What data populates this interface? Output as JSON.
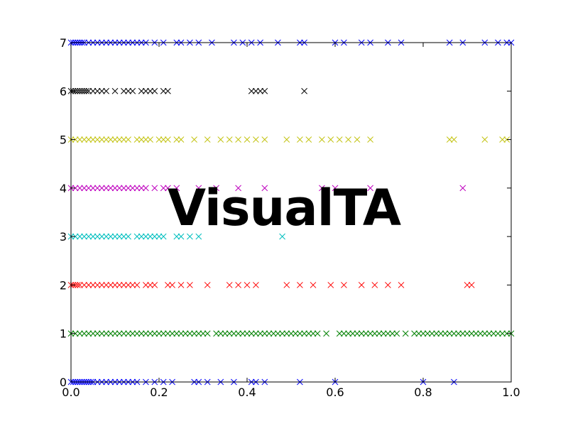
{
  "overlay": {
    "text": "VisualTA"
  },
  "chart_data": {
    "type": "scatter",
    "marker": "x",
    "title": "",
    "xlabel": "",
    "ylabel": "",
    "xlim": [
      0.0,
      1.0
    ],
    "ylim": [
      0,
      7
    ],
    "grid": false,
    "xticks": [
      "0.0",
      "0.2",
      "0.4",
      "0.6",
      "0.8",
      "1.0"
    ],
    "yticks": [
      "0",
      "1",
      "2",
      "3",
      "4",
      "5",
      "6",
      "7"
    ],
    "series": [
      {
        "color": "#0000ff",
        "y": 0,
        "x": [
          0.0,
          0.005,
          0.01,
          0.015,
          0.02,
          0.025,
          0.03,
          0.035,
          0.04,
          0.045,
          0.05,
          0.06,
          0.07,
          0.08,
          0.09,
          0.1,
          0.11,
          0.12,
          0.13,
          0.14,
          0.15,
          0.17,
          0.19,
          0.21,
          0.23,
          0.28,
          0.29,
          0.31,
          0.34,
          0.37,
          0.41,
          0.42,
          0.44,
          0.52,
          0.6,
          0.8,
          0.87
        ]
      },
      {
        "color": "#008000",
        "y": 1,
        "x": [
          0.0,
          0.01,
          0.02,
          0.03,
          0.04,
          0.05,
          0.06,
          0.07,
          0.08,
          0.09,
          0.1,
          0.11,
          0.12,
          0.13,
          0.14,
          0.15,
          0.16,
          0.17,
          0.18,
          0.19,
          0.2,
          0.21,
          0.22,
          0.23,
          0.24,
          0.25,
          0.26,
          0.27,
          0.28,
          0.29,
          0.3,
          0.31,
          0.33,
          0.34,
          0.35,
          0.36,
          0.37,
          0.38,
          0.39,
          0.4,
          0.41,
          0.42,
          0.43,
          0.44,
          0.45,
          0.46,
          0.47,
          0.48,
          0.49,
          0.5,
          0.51,
          0.52,
          0.53,
          0.54,
          0.55,
          0.56,
          0.58,
          0.61,
          0.62,
          0.63,
          0.64,
          0.65,
          0.66,
          0.67,
          0.68,
          0.69,
          0.7,
          0.71,
          0.72,
          0.73,
          0.74,
          0.76,
          0.78,
          0.79,
          0.8,
          0.81,
          0.82,
          0.83,
          0.84,
          0.85,
          0.86,
          0.87,
          0.88,
          0.89,
          0.9,
          0.91,
          0.92,
          0.93,
          0.94,
          0.95,
          0.96,
          0.97,
          0.98,
          0.99,
          1.0
        ]
      },
      {
        "color": "#ff0000",
        "y": 2,
        "x": [
          0.0,
          0.005,
          0.01,
          0.015,
          0.02,
          0.03,
          0.04,
          0.05,
          0.06,
          0.07,
          0.08,
          0.09,
          0.1,
          0.11,
          0.12,
          0.13,
          0.14,
          0.15,
          0.17,
          0.18,
          0.19,
          0.22,
          0.23,
          0.25,
          0.27,
          0.31,
          0.36,
          0.38,
          0.4,
          0.42,
          0.49,
          0.52,
          0.55,
          0.59,
          0.62,
          0.66,
          0.69,
          0.72,
          0.75,
          0.9,
          0.91
        ]
      },
      {
        "color": "#00bfbf",
        "y": 3,
        "x": [
          0.0,
          0.01,
          0.02,
          0.03,
          0.04,
          0.05,
          0.06,
          0.07,
          0.08,
          0.09,
          0.1,
          0.11,
          0.12,
          0.13,
          0.15,
          0.16,
          0.17,
          0.18,
          0.19,
          0.2,
          0.21,
          0.24,
          0.25,
          0.27,
          0.29,
          0.48
        ]
      },
      {
        "color": "#bf00bf",
        "y": 4,
        "x": [
          0.0,
          0.01,
          0.02,
          0.03,
          0.04,
          0.05,
          0.06,
          0.07,
          0.08,
          0.09,
          0.1,
          0.11,
          0.12,
          0.13,
          0.14,
          0.15,
          0.16,
          0.17,
          0.19,
          0.21,
          0.22,
          0.24,
          0.29,
          0.33,
          0.38,
          0.44,
          0.57,
          0.6,
          0.68,
          0.89
        ]
      },
      {
        "color": "#bfbf00",
        "y": 5,
        "x": [
          0.0,
          0.01,
          0.02,
          0.03,
          0.04,
          0.05,
          0.06,
          0.07,
          0.08,
          0.09,
          0.1,
          0.11,
          0.12,
          0.13,
          0.15,
          0.16,
          0.17,
          0.18,
          0.2,
          0.21,
          0.22,
          0.24,
          0.25,
          0.28,
          0.31,
          0.34,
          0.36,
          0.38,
          0.4,
          0.42,
          0.44,
          0.49,
          0.52,
          0.54,
          0.57,
          0.59,
          0.61,
          0.63,
          0.65,
          0.68,
          0.86,
          0.87,
          0.94,
          0.98,
          0.99
        ]
      },
      {
        "color": "#000000",
        "y": 6,
        "x": [
          0.0,
          0.005,
          0.01,
          0.015,
          0.02,
          0.025,
          0.03,
          0.035,
          0.04,
          0.05,
          0.06,
          0.07,
          0.08,
          0.1,
          0.12,
          0.13,
          0.14,
          0.16,
          0.17,
          0.18,
          0.19,
          0.21,
          0.22,
          0.41,
          0.42,
          0.43,
          0.44,
          0.53
        ]
      },
      {
        "color": "#0000ff",
        "y": 7,
        "x": [
          0.0,
          0.005,
          0.01,
          0.015,
          0.02,
          0.025,
          0.03,
          0.04,
          0.05,
          0.06,
          0.07,
          0.08,
          0.09,
          0.1,
          0.11,
          0.12,
          0.13,
          0.14,
          0.15,
          0.16,
          0.17,
          0.19,
          0.21,
          0.24,
          0.25,
          0.27,
          0.29,
          0.32,
          0.37,
          0.39,
          0.41,
          0.43,
          0.47,
          0.52,
          0.53,
          0.6,
          0.62,
          0.66,
          0.68,
          0.72,
          0.75,
          0.86,
          0.89,
          0.94,
          0.97,
          0.99,
          1.0
        ]
      }
    ]
  }
}
